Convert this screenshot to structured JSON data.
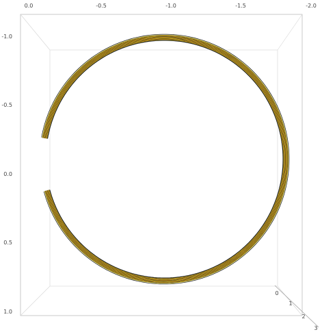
{
  "chart_data": {
    "type": "3d-parametric-surface",
    "title": "",
    "axes": {
      "top": {
        "label": "",
        "ticks": [
          "0.0",
          "-0.5",
          "-1.0",
          "-1.5",
          "-2.0"
        ],
        "range": [
          0.0,
          -2.0
        ]
      },
      "left": {
        "label": "",
        "ticks": [
          "-1.0",
          "-0.5",
          "0.0",
          "0.5",
          "1.0"
        ],
        "range": [
          -1.0,
          1.0
        ]
      },
      "depth": {
        "label": "",
        "ticks": [
          "0",
          "1",
          "2",
          "3"
        ],
        "range": [
          0,
          3
        ]
      }
    },
    "series": [
      {
        "shape": "circular spiral ribbon viewed from above",
        "center": [
          -0.97,
          -0.1
        ],
        "radius": 0.87,
        "arc_start_deg": 190,
        "arc_end_deg": 525,
        "inner_gap": [
          [
            0.0,
            0.0
          ],
          [
            0.19,
            -0.02
          ]
        ],
        "colors": {
          "edge": "#1a1a1a",
          "highlight": "#f2de1a",
          "shade": "#d37a13"
        }
      }
    ],
    "grid": false,
    "legend": "none"
  }
}
